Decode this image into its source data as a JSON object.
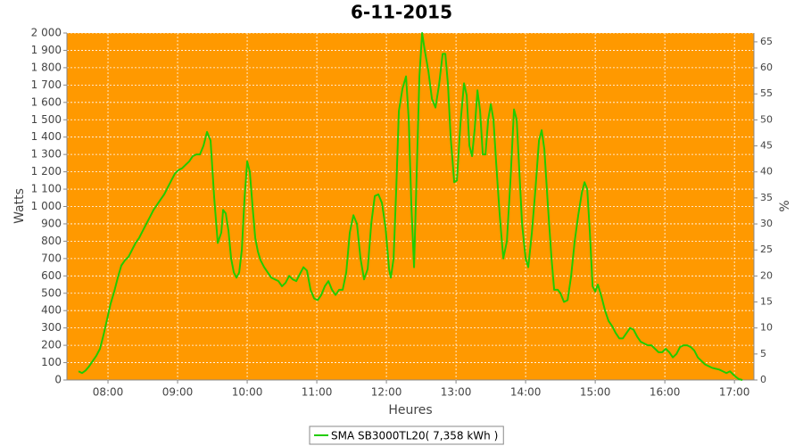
{
  "chart_data": {
    "type": "line",
    "title": "6-11-2015",
    "xlabel": "Heures",
    "ylabel": "Watts",
    "y2label": "%",
    "x": [
      7.577,
      7.628,
      7.679,
      7.731,
      7.782,
      7.833,
      7.885,
      7.936,
      7.987,
      8.038,
      8.09,
      8.141,
      8.192,
      8.244,
      8.295,
      8.346,
      8.397,
      8.449,
      8.5,
      8.551,
      8.603,
      8.654,
      8.705,
      8.756,
      8.808,
      8.859,
      8.91,
      8.962,
      9.013,
      9.064,
      9.115,
      9.167,
      9.218,
      9.269,
      9.321,
      9.372,
      9.423,
      9.474,
      9.526,
      9.577,
      9.628,
      9.654,
      9.692,
      9.731,
      9.769,
      9.808,
      9.846,
      9.885,
      9.923,
      9.962,
      10.0,
      10.038,
      10.077,
      10.115,
      10.154,
      10.192,
      10.244,
      10.295,
      10.346,
      10.397,
      10.449,
      10.5,
      10.551,
      10.603,
      10.654,
      10.705,
      10.756,
      10.808,
      10.859,
      10.91,
      10.962,
      11.013,
      11.064,
      11.115,
      11.167,
      11.218,
      11.269,
      11.321,
      11.372,
      11.423,
      11.474,
      11.526,
      11.577,
      11.628,
      11.679,
      11.731,
      11.782,
      11.833,
      11.885,
      11.936,
      11.987,
      12.038,
      12.064,
      12.103,
      12.141,
      12.179,
      12.231,
      12.282,
      12.321,
      12.359,
      12.397,
      12.436,
      12.474,
      12.513,
      12.551,
      12.603,
      12.654,
      12.705,
      12.756,
      12.808,
      12.846,
      12.885,
      12.923,
      12.974,
      13.013,
      13.064,
      13.115,
      13.154,
      13.192,
      13.231,
      13.269,
      13.308,
      13.346,
      13.385,
      13.423,
      13.462,
      13.5,
      13.538,
      13.577,
      13.628,
      13.679,
      13.731,
      13.782,
      13.833,
      13.872,
      13.91,
      13.949,
      14.0,
      14.038,
      14.09,
      14.141,
      14.192,
      14.231,
      14.269,
      14.321,
      14.372,
      14.41,
      14.462,
      14.5,
      14.551,
      14.603,
      14.654,
      14.705,
      14.756,
      14.808,
      14.846,
      14.885,
      14.923,
      14.962,
      15.0,
      15.038,
      15.09,
      15.141,
      15.192,
      15.244,
      15.295,
      15.346,
      15.397,
      15.449,
      15.5,
      15.551,
      15.603,
      15.654,
      15.705,
      15.756,
      15.808,
      15.859,
      15.91,
      15.962,
      16.013,
      16.064,
      16.115,
      16.167,
      16.218,
      16.269,
      16.321,
      16.372,
      16.423,
      16.474,
      16.526,
      16.577,
      16.628,
      16.679,
      16.731,
      16.782,
      16.833,
      16.885,
      16.936,
      16.962,
      17.013,
      17.064,
      17.115
    ],
    "series": [
      {
        "name": "SMA SB3000TL20( 7,358 kWh )",
        "color": "#22cc00",
        "values": [
          50,
          40,
          55,
          80,
          110,
          140,
          180,
          260,
          350,
          440,
          510,
          590,
          660,
          690,
          710,
          750,
          790,
          820,
          860,
          900,
          940,
          980,
          1010,
          1040,
          1070,
          1110,
          1150,
          1190,
          1210,
          1220,
          1240,
          1260,
          1290,
          1300,
          1300,
          1350,
          1430,
          1380,
          1050,
          790,
          850,
          980,
          960,
          860,
          700,
          620,
          590,
          620,
          750,
          1050,
          1260,
          1200,
          1000,
          820,
          740,
          690,
          650,
          620,
          590,
          580,
          570,
          540,
          560,
          600,
          580,
          570,
          610,
          650,
          630,
          520,
          470,
          460,
          490,
          540,
          570,
          520,
          490,
          520,
          520,
          620,
          850,
          950,
          900,
          700,
          580,
          640,
          900,
          1060,
          1070,
          1020,
          880,
          640,
          590,
          700,
          1100,
          1550,
          1680,
          1750,
          1500,
          1000,
          650,
          1200,
          1750,
          2000,
          1900,
          1780,
          1620,
          1570,
          1700,
          1880,
          1880,
          1700,
          1400,
          1140,
          1150,
          1480,
          1710,
          1640,
          1350,
          1290,
          1450,
          1670,
          1550,
          1300,
          1300,
          1500,
          1590,
          1500,
          1250,
          950,
          700,
          800,
          1150,
          1560,
          1500,
          1200,
          900,
          700,
          650,
          850,
          1100,
          1380,
          1440,
          1330,
          1000,
          700,
          520,
          520,
          500,
          450,
          460,
          600,
          800,
          950,
          1080,
          1140,
          1100,
          850,
          540,
          510,
          550,
          480,
          400,
          340,
          310,
          270,
          240,
          240,
          270,
          300,
          290,
          250,
          220,
          210,
          200,
          200,
          180,
          160,
          160,
          180,
          160,
          130,
          150,
          190,
          200,
          200,
          190,
          170,
          130,
          110,
          90,
          80,
          70,
          65,
          60,
          50,
          40,
          50,
          40,
          20,
          5,
          0
        ]
      }
    ],
    "xlim": [
      7.41,
      17.28
    ],
    "xticks": [
      {
        "value": 8,
        "label": "08:00"
      },
      {
        "value": 9,
        "label": "09:00"
      },
      {
        "value": 10,
        "label": "10:00"
      },
      {
        "value": 11,
        "label": "11:00"
      },
      {
        "value": 12,
        "label": "12:00"
      },
      {
        "value": 13,
        "label": "13:00"
      },
      {
        "value": 14,
        "label": "14:00"
      },
      {
        "value": 15,
        "label": "15:00"
      },
      {
        "value": 16,
        "label": "16:00"
      },
      {
        "value": 17,
        "label": "17:00"
      }
    ],
    "ylim": [
      0,
      2000
    ],
    "yticks": [
      0,
      100,
      200,
      300,
      400,
      500,
      600,
      700,
      800,
      900,
      {
        "value": 1000,
        "label": "1 000"
      },
      {
        "value": 1100,
        "label": "1 100"
      },
      {
        "value": 1200,
        "label": "1 200"
      },
      {
        "value": 1300,
        "label": "1 300"
      },
      {
        "value": 1400,
        "label": "1 400"
      },
      {
        "value": 1500,
        "label": "1 500"
      },
      {
        "value": 1600,
        "label": "1 600"
      },
      {
        "value": 1700,
        "label": "1 700"
      },
      {
        "value": 1800,
        "label": "1 800"
      },
      {
        "value": 1900,
        "label": "1 900"
      },
      {
        "value": 2000,
        "label": "2 000"
      }
    ],
    "y2lim": [
      0,
      66.7
    ],
    "y2ticks": [
      0,
      5,
      10,
      15,
      20,
      25,
      30,
      35,
      40,
      45,
      50,
      55,
      60,
      65
    ],
    "grid": true,
    "background": "#ff9900",
    "legend": "bottom"
  }
}
